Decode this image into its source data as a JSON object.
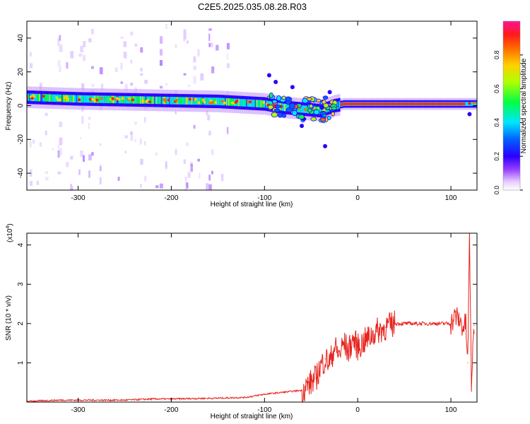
{
  "figure": {
    "title": "C2E5.2025.035.08.28.R03"
  },
  "chart_data": [
    {
      "type": "heatmap",
      "xlabel": "Height of straight line (km)",
      "ylabel": "Frequency (Hz)",
      "xlim": [
        -355,
        128
      ],
      "ylim": [
        -50,
        50
      ],
      "xticks": [
        -300,
        -200,
        -100,
        0,
        100
      ],
      "yticks": [
        -40,
        -20,
        0,
        20,
        40
      ],
      "colorbar": {
        "label": "Normalized spectral amplitude",
        "range": [
          0.0,
          1.0
        ],
        "ticks": [
          0.0,
          0.2,
          0.4,
          0.6,
          0.8
        ],
        "colors": [
          "#ffffff",
          "#d8a8ff",
          "#7b2cff",
          "#0000ff",
          "#00e5ff",
          "#00ff44",
          "#c8ff00",
          "#ffd000",
          "#ff2200",
          "#ff1493"
        ]
      },
      "ridge": {
        "description_points_x": [
          -355,
          -300,
          -200,
          -150,
          -100,
          -80,
          -60,
          -40,
          -25,
          -15,
          0,
          50,
          100,
          120,
          128
        ],
        "center_freq": [
          5,
          4,
          3,
          2.5,
          1,
          -1,
          -2,
          -3,
          0,
          1,
          1,
          1,
          1,
          1,
          1
        ]
      },
      "grid": false
    },
    {
      "type": "line",
      "xlabel": "Height of straight line (km)",
      "ylabel": "SNR (10 * v/v)",
      "y_multiplier_label": "(x10",
      "y_multiplier_exp": "4",
      "y_multiplier_close": ")",
      "xlim": [
        -355,
        128
      ],
      "ylim": [
        0,
        4.3
      ],
      "xticks": [
        -300,
        -200,
        -100,
        0,
        100
      ],
      "yticks": [
        1,
        2,
        3,
        4
      ],
      "series": [
        {
          "color": "#e8251f",
          "x": [
            -355,
            -320,
            -300,
            -250,
            -220,
            -200,
            -150,
            -120,
            -100,
            -80,
            -60,
            -50,
            -45,
            -40,
            -35,
            -30,
            -25,
            -20,
            -15,
            -10,
            -5,
            0,
            10,
            20,
            30,
            40,
            60,
            80,
            100,
            105,
            110,
            113,
            116,
            118,
            120,
            122,
            125
          ],
          "y": [
            0.02,
            0.05,
            0.05,
            0.05,
            0.08,
            0.08,
            0.1,
            0.12,
            0.2,
            0.25,
            0.3,
            0.5,
            0.6,
            0.9,
            1.1,
            1.0,
            1.4,
            1.2,
            1.5,
            1.3,
            1.6,
            1.4,
            1.6,
            1.8,
            1.9,
            2.0,
            2.0,
            2.0,
            2.0,
            2.2,
            2.05,
            1.9,
            2.0,
            1.0,
            4.2,
            0.5,
            1.95
          ]
        }
      ],
      "grid": false
    }
  ]
}
